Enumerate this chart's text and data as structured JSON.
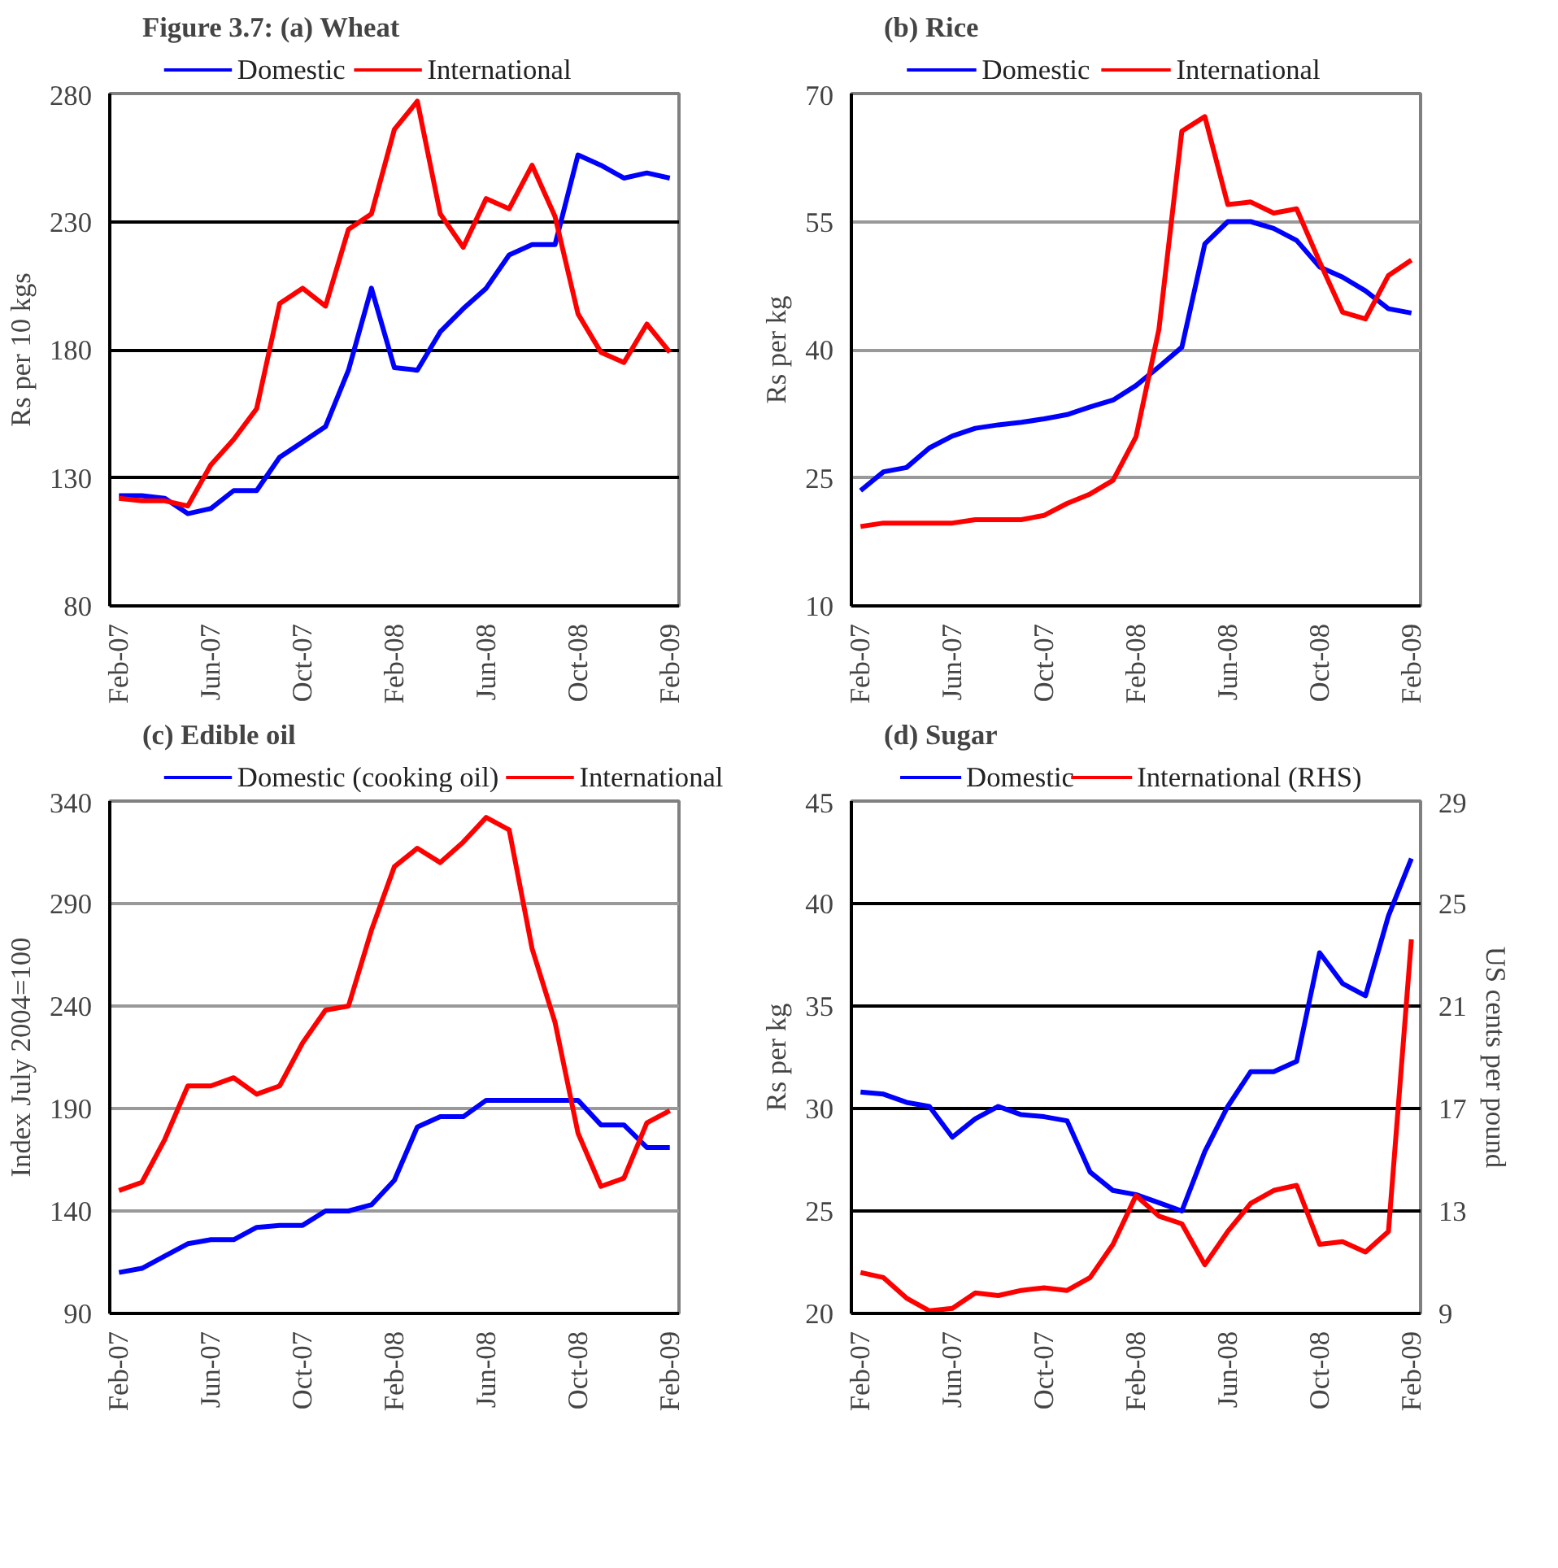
{
  "chart_data": [
    {
      "type": "line",
      "title": "Figure 3.7: (a) Wheat",
      "ylabel": "Rs per 10 kgs",
      "categories": [
        "Feb-07",
        null,
        null,
        null,
        "Jun-07",
        null,
        null,
        null,
        "Oct-07",
        null,
        null,
        null,
        "Feb-08",
        null,
        null,
        null,
        "Jun-08",
        null,
        null,
        null,
        "Oct-08",
        null,
        null,
        null,
        "Feb-09"
      ],
      "ylim": [
        80,
        280
      ],
      "yticks": [
        80,
        130,
        180,
        230,
        280
      ],
      "grid": "y",
      "legend": "top",
      "series": [
        {
          "name": "Domestic",
          "color": "#0000ff",
          "values": [
            123,
            123,
            122,
            116,
            118,
            125,
            125,
            138,
            144,
            150,
            172,
            204,
            173,
            172,
            187,
            196,
            204,
            217,
            221,
            221,
            256,
            252,
            247,
            249,
            247
          ]
        },
        {
          "name": "International",
          "color": "#ff0000",
          "values": [
            122,
            121,
            121,
            119,
            135,
            145,
            157,
            198,
            204,
            197,
            227,
            233,
            266,
            277,
            233,
            220,
            239,
            235,
            252,
            232,
            194,
            179,
            175,
            190,
            179
          ]
        }
      ]
    },
    {
      "type": "line",
      "title": "(b) Rice",
      "ylabel": "Rs per kg",
      "categories": [
        "Feb-07",
        null,
        null,
        null,
        "Jun-07",
        null,
        null,
        null,
        "Oct-07",
        null,
        null,
        null,
        "Feb-08",
        null,
        null,
        null,
        "Jun-08",
        null,
        null,
        null,
        "Oct-08",
        null,
        null,
        null,
        "Feb-09"
      ],
      "ylim": [
        10,
        70
      ],
      "yticks": [
        10,
        25,
        40,
        55,
        70
      ],
      "grid": "y",
      "legend": "top",
      "series": [
        {
          "name": "Domestic",
          "color": "#0000ff",
          "values": [
            23.5,
            25.7,
            26.2,
            28.5,
            29.9,
            30.8,
            31.2,
            31.5,
            31.9,
            32.4,
            33.3,
            34.1,
            35.8,
            38,
            40.3,
            52.4,
            55,
            55,
            54.2,
            52.8,
            49.7,
            48.5,
            46.9,
            44.8,
            44.3
          ]
        },
        {
          "name": "International",
          "color": "#ff0000",
          "values": [
            19.3,
            19.7,
            19.7,
            19.7,
            19.7,
            20.1,
            20.1,
            20.1,
            20.6,
            22,
            23.1,
            24.7,
            29.8,
            42.4,
            65.6,
            67.3,
            57,
            57.3,
            56,
            56.5,
            50.3,
            44.4,
            43.6,
            48.7,
            50.5
          ]
        }
      ]
    },
    {
      "type": "line",
      "title": "(c) Edible oil",
      "ylabel": "Index July 2004=100",
      "categories": [
        "Feb-07",
        null,
        null,
        null,
        "Jun-07",
        null,
        null,
        null,
        "Oct-07",
        null,
        null,
        null,
        "Feb-08",
        null,
        null,
        null,
        "Jun-08",
        null,
        null,
        null,
        "Oct-08",
        null,
        null,
        null,
        "Feb-09"
      ],
      "ylim": [
        90,
        340
      ],
      "yticks": [
        90,
        140,
        190,
        240,
        290,
        340
      ],
      "grid": "y",
      "legend": "top",
      "series": [
        {
          "name": "Domestic (cooking oil)",
          "color": "#0000ff",
          "values": [
            110,
            112,
            118,
            124,
            126,
            126,
            132,
            133,
            133,
            140,
            140,
            143,
            155,
            181,
            186,
            186,
            194,
            194,
            194,
            194,
            194,
            182,
            182,
            171,
            171
          ]
        },
        {
          "name": "International",
          "color": "#ff0000",
          "values": [
            150,
            154,
            175,
            201,
            201,
            205,
            197,
            201,
            222,
            238,
            240,
            277,
            308,
            317,
            310,
            320,
            332,
            326,
            268,
            232,
            178,
            152,
            156,
            183,
            189
          ]
        }
      ]
    },
    {
      "type": "line",
      "title": "(d) Sugar",
      "ylabel": "Rs per kg",
      "y2label": "US cents per pound",
      "categories": [
        "Feb-07",
        null,
        null,
        null,
        "Jun-07",
        null,
        null,
        null,
        "Oct-07",
        null,
        null,
        null,
        "Feb-08",
        null,
        null,
        null,
        "Jun-08",
        null,
        null,
        null,
        "Oct-08",
        null,
        null,
        null,
        "Feb-09"
      ],
      "ylim": [
        20,
        45
      ],
      "yticks": [
        20,
        25,
        30,
        35,
        40,
        45
      ],
      "y2lim": [
        9,
        29
      ],
      "y2ticks": [
        9,
        13,
        17,
        21,
        25,
        29
      ],
      "grid": "y",
      "legend": "top",
      "series": [
        {
          "name": "Domestic",
          "color": "#0000ff",
          "values": [
            30.8,
            30.7,
            30.3,
            30.1,
            28.6,
            29.5,
            30.1,
            29.7,
            29.6,
            29.4,
            26.9,
            26,
            25.8,
            25.4,
            25,
            27.9,
            30.1,
            31.8,
            31.8,
            32.3,
            37.6,
            36.1,
            35.5,
            39.4,
            42.2
          ]
        },
        {
          "name": "International (RHS)",
          "color": "#ff0000",
          "axis": "y2",
          "values": [
            10.6,
            10.4,
            9.6,
            9.1,
            9.2,
            9.8,
            9.7,
            9.9,
            10,
            9.9,
            10.4,
            11.7,
            13.6,
            12.8,
            12.5,
            10.9,
            12.2,
            13.3,
            13.8,
            14,
            11.7,
            11.8,
            11.4,
            12.2,
            23.6
          ]
        }
      ]
    }
  ]
}
